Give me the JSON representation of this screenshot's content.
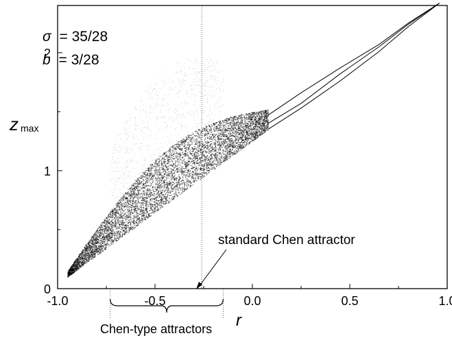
{
  "chart_data": {
    "type": "scatter",
    "title": "",
    "xlabel": "r",
    "ylabel_main": "z",
    "ylabel_sub": "max",
    "xlim": [
      -1.0,
      1.0
    ],
    "ylim": [
      0,
      2.4
    ],
    "x_ticks": [
      -1.0,
      -0.5,
      0.0,
      0.5,
      1.0
    ],
    "x_tick_labels": [
      "-1.0",
      "-0.5",
      "0.0",
      "0.5",
      "1.0"
    ],
    "y_ticks": [
      0,
      1,
      2
    ],
    "y_tick_labels": [
      "0",
      "1",
      "2"
    ],
    "params": {
      "sigma_symbol": "σ",
      "sigma_value": "= 35/28",
      "b_symbol": "b",
      "b_value": "= 3/28"
    },
    "grid": false,
    "legend": "none",
    "chaotic_region": {
      "r_start": -0.95,
      "r_end": 0.08,
      "z_low_start": 0.1,
      "z_high_peak": 2.0
    },
    "periodic_branches": [
      {
        "name": "upper",
        "x": [
          0.08,
          0.25,
          0.45,
          0.65,
          0.8,
          0.96
        ],
        "y": [
          1.47,
          1.66,
          1.87,
          2.07,
          2.25,
          2.42
        ]
      },
      {
        "name": "middle",
        "x": [
          0.08,
          0.25,
          0.45,
          0.65,
          0.8,
          0.96
        ],
        "y": [
          1.4,
          1.57,
          1.82,
          2.05,
          2.24,
          2.42
        ]
      },
      {
        "name": "lower",
        "x": [
          0.08,
          0.25,
          0.45,
          0.65,
          0.8,
          0.96
        ],
        "y": [
          1.35,
          1.53,
          1.76,
          2.01,
          2.22,
          2.42
        ]
      }
    ],
    "vlines": [
      {
        "x": -0.26,
        "label": "standard Chen attractor"
      },
      {
        "x": -0.73
      },
      {
        "x": -0.15
      }
    ],
    "brace": {
      "x_start": -0.73,
      "x_end": -0.15,
      "label": "Chen-type attractors"
    },
    "annotations": {
      "standard": "standard Chen attractor",
      "brace_label": "Chen-type attractors"
    }
  },
  "style": {
    "axis_color": "#000000",
    "point_color": "#000000",
    "dotted_color": "#555555"
  }
}
